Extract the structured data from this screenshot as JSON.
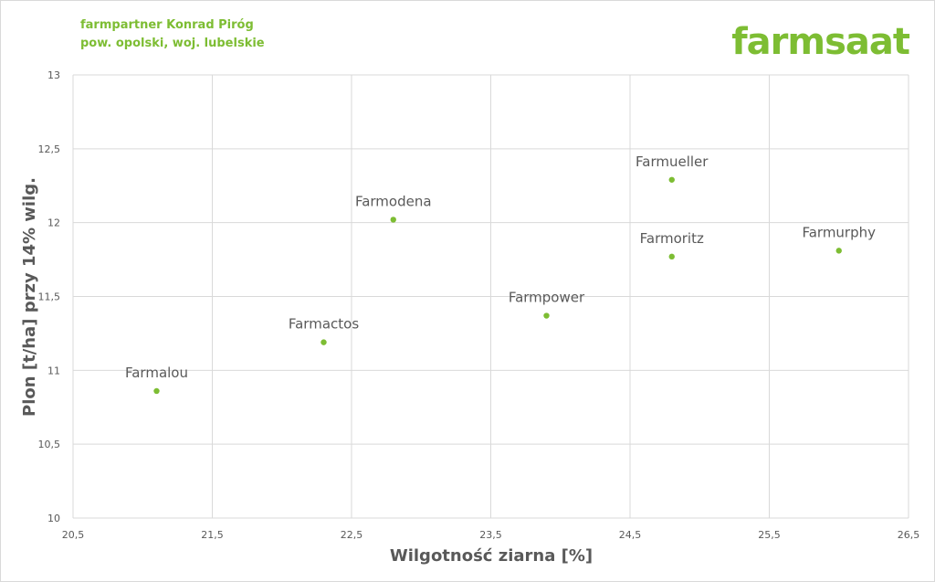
{
  "header": {
    "line1": "farmpartner Konrad Piróg",
    "line2": "pow. opolski, woj. lubelskie",
    "brand": "farmsaat"
  },
  "colors": {
    "accent": "#7dbd33",
    "grid": "#d9d9d9",
    "text": "#595959"
  },
  "chart_data": {
    "type": "scatter",
    "title": "",
    "xlabel": "Wilgotność ziarna [%]",
    "ylabel": "Plon [t/ha] przy 14% wilg.",
    "xlim": [
      20.5,
      26.5
    ],
    "ylim": [
      10,
      13
    ],
    "xticks": [
      20.5,
      21.5,
      22.5,
      23.5,
      24.5,
      25.5,
      26.5
    ],
    "xtick_labels": [
      "20,5",
      "21,5",
      "22,5",
      "23,5",
      "24,5",
      "25,5",
      "26,5"
    ],
    "yticks": [
      10,
      10.5,
      11,
      11.5,
      12,
      12.5,
      13
    ],
    "ytick_labels": [
      "10",
      "10,5",
      "11",
      "11,5",
      "12",
      "12,5",
      "13"
    ],
    "grid": true,
    "legend": "none",
    "points": [
      {
        "label": "Farmalou",
        "x": 21.1,
        "y": 10.86
      },
      {
        "label": "Farmactos",
        "x": 22.3,
        "y": 11.19
      },
      {
        "label": "Farmodena",
        "x": 22.8,
        "y": 12.02
      },
      {
        "label": "Farmpower",
        "x": 23.9,
        "y": 11.37
      },
      {
        "label": "Farmueller",
        "x": 24.8,
        "y": 12.29
      },
      {
        "label": "Farmoritz",
        "x": 24.8,
        "y": 11.77
      },
      {
        "label": "Farmurphy",
        "x": 26.0,
        "y": 11.81
      }
    ]
  }
}
